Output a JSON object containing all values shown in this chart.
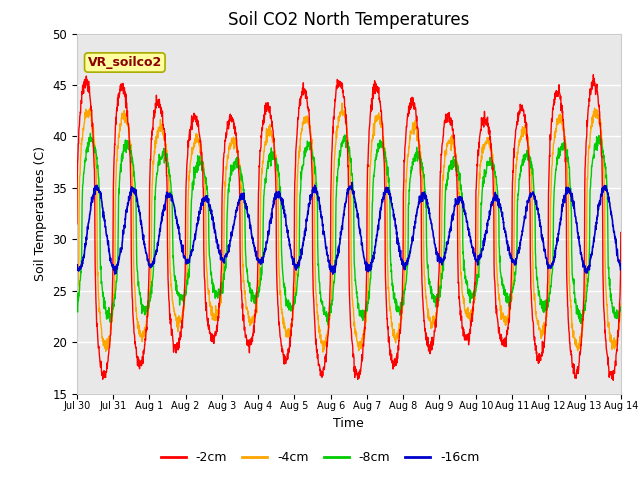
{
  "title": "Soil CO2 North Temperatures",
  "xlabel": "Time",
  "ylabel": "Soil Temperatures (C)",
  "ylim": [
    15,
    50
  ],
  "annotation_text": "VR_soilco2",
  "bg_color": "#e8e8e8",
  "fig_bg": "#ffffff",
  "legend_labels": [
    "-2cm",
    "-4cm",
    "-8cm",
    "-16cm"
  ],
  "legend_colors": [
    "#ff0000",
    "#ffa500",
    "#00cc00",
    "#0000cc"
  ],
  "x_tick_labels": [
    "Jul 30",
    "Jul 31",
    "Aug 1",
    "Aug 2",
    "Aug 3",
    "Aug 4",
    "Aug 5",
    "Aug 6",
    "Aug 7",
    "Aug 8",
    "Aug 9",
    "Aug 10",
    "Aug 11",
    "Aug 12",
    "Aug 13",
    "Aug 14"
  ],
  "num_days": 15,
  "samples_per_day": 144,
  "phase_shift_4cm": 0.06,
  "phase_shift_8cm": 0.14,
  "phase_shift_16cm": 0.3,
  "amp_2cm": 12.5,
  "amp_4cm": 10.0,
  "amp_8cm": 7.5,
  "amp_16cm": 3.5,
  "mean_temp": 31.0,
  "sharpness": 2.5
}
